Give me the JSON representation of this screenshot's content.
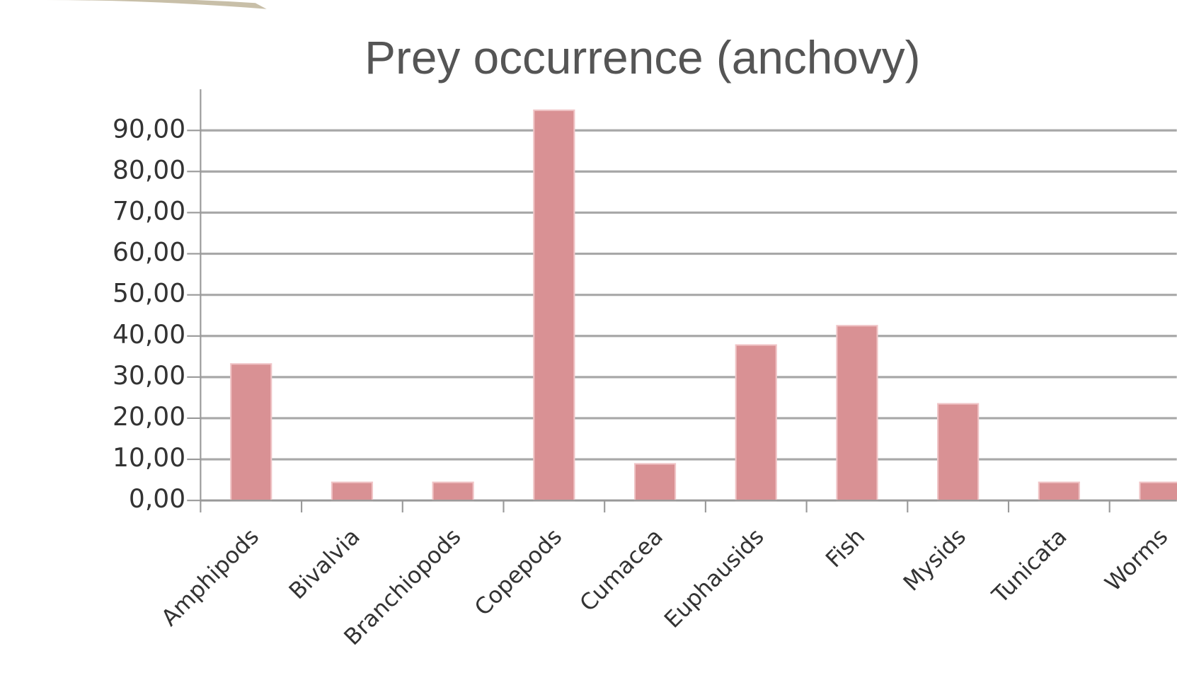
{
  "chart_data": {
    "type": "bar",
    "title": "Prey occurrence (anchovy)",
    "categories": [
      "Amphipods",
      "Bivalvia",
      "Branchiopods",
      "Copepods",
      "Cumacea",
      "Euphausids",
      "Fish",
      "Mysids",
      "Tunicata",
      "Worms"
    ],
    "values": [
      33.2,
      4.4,
      4.4,
      94.9,
      8.9,
      37.8,
      42.5,
      23.5,
      4.4,
      4.4
    ],
    "color": "#d99194",
    "ylim": [
      0,
      100
    ],
    "yticks": [
      {
        "value": 0,
        "label": "0,00"
      },
      {
        "value": 10,
        "label": "10,00"
      },
      {
        "value": 20,
        "label": "20,00"
      },
      {
        "value": 30,
        "label": "30,00"
      },
      {
        "value": 40,
        "label": "40,00"
      },
      {
        "value": 50,
        "label": "50,00"
      },
      {
        "value": 60,
        "label": "60,00"
      },
      {
        "value": 70,
        "label": "70,00"
      },
      {
        "value": 80,
        "label": "80,00"
      },
      {
        "value": 90,
        "label": "90,00"
      }
    ],
    "grid": true
  }
}
